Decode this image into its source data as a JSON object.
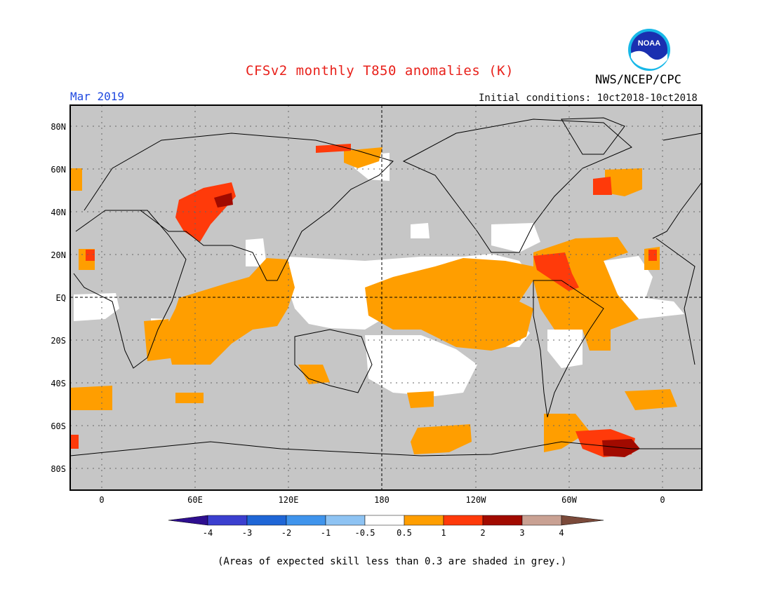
{
  "header": {
    "title": "CFSv2 monthly T850 anomalies (K)",
    "month": "Mar 2019",
    "initial_conditions": "Initial conditions: 10ct2018-10ct2018",
    "agency": "NWS/NCEP/CPC",
    "logo_text": "NOAA"
  },
  "axes": {
    "lat_labels": [
      "80N",
      "60N",
      "40N",
      "20N",
      "EQ",
      "20S",
      "40S",
      "60S",
      "80S"
    ],
    "lon_labels": [
      "0",
      "60E",
      "120E",
      "180",
      "120W",
      "60W",
      "0"
    ]
  },
  "legend": {
    "labels": [
      "-4",
      "-3",
      "-2",
      "-1",
      "-0.5",
      "0.5",
      "1",
      "2",
      "3",
      "4"
    ],
    "colors": [
      "#2e0e8f",
      "#3b3fcf",
      "#1f66d6",
      "#3f94ec",
      "#8ec3f3",
      "#ffffff",
      "#ff9e00",
      "#ff3a0a",
      "#a10a00",
      "#c9a193",
      "#7b4a3a"
    ]
  },
  "footnote": "(Areas of expected skill less than 0.3 are shaded in grey.)",
  "colors": {
    "grey_shade": "#c6c6c6",
    "white": "#ffffff",
    "orange": "#ff9e00",
    "red": "#ff3a0a",
    "dark_red": "#a10a00"
  }
}
